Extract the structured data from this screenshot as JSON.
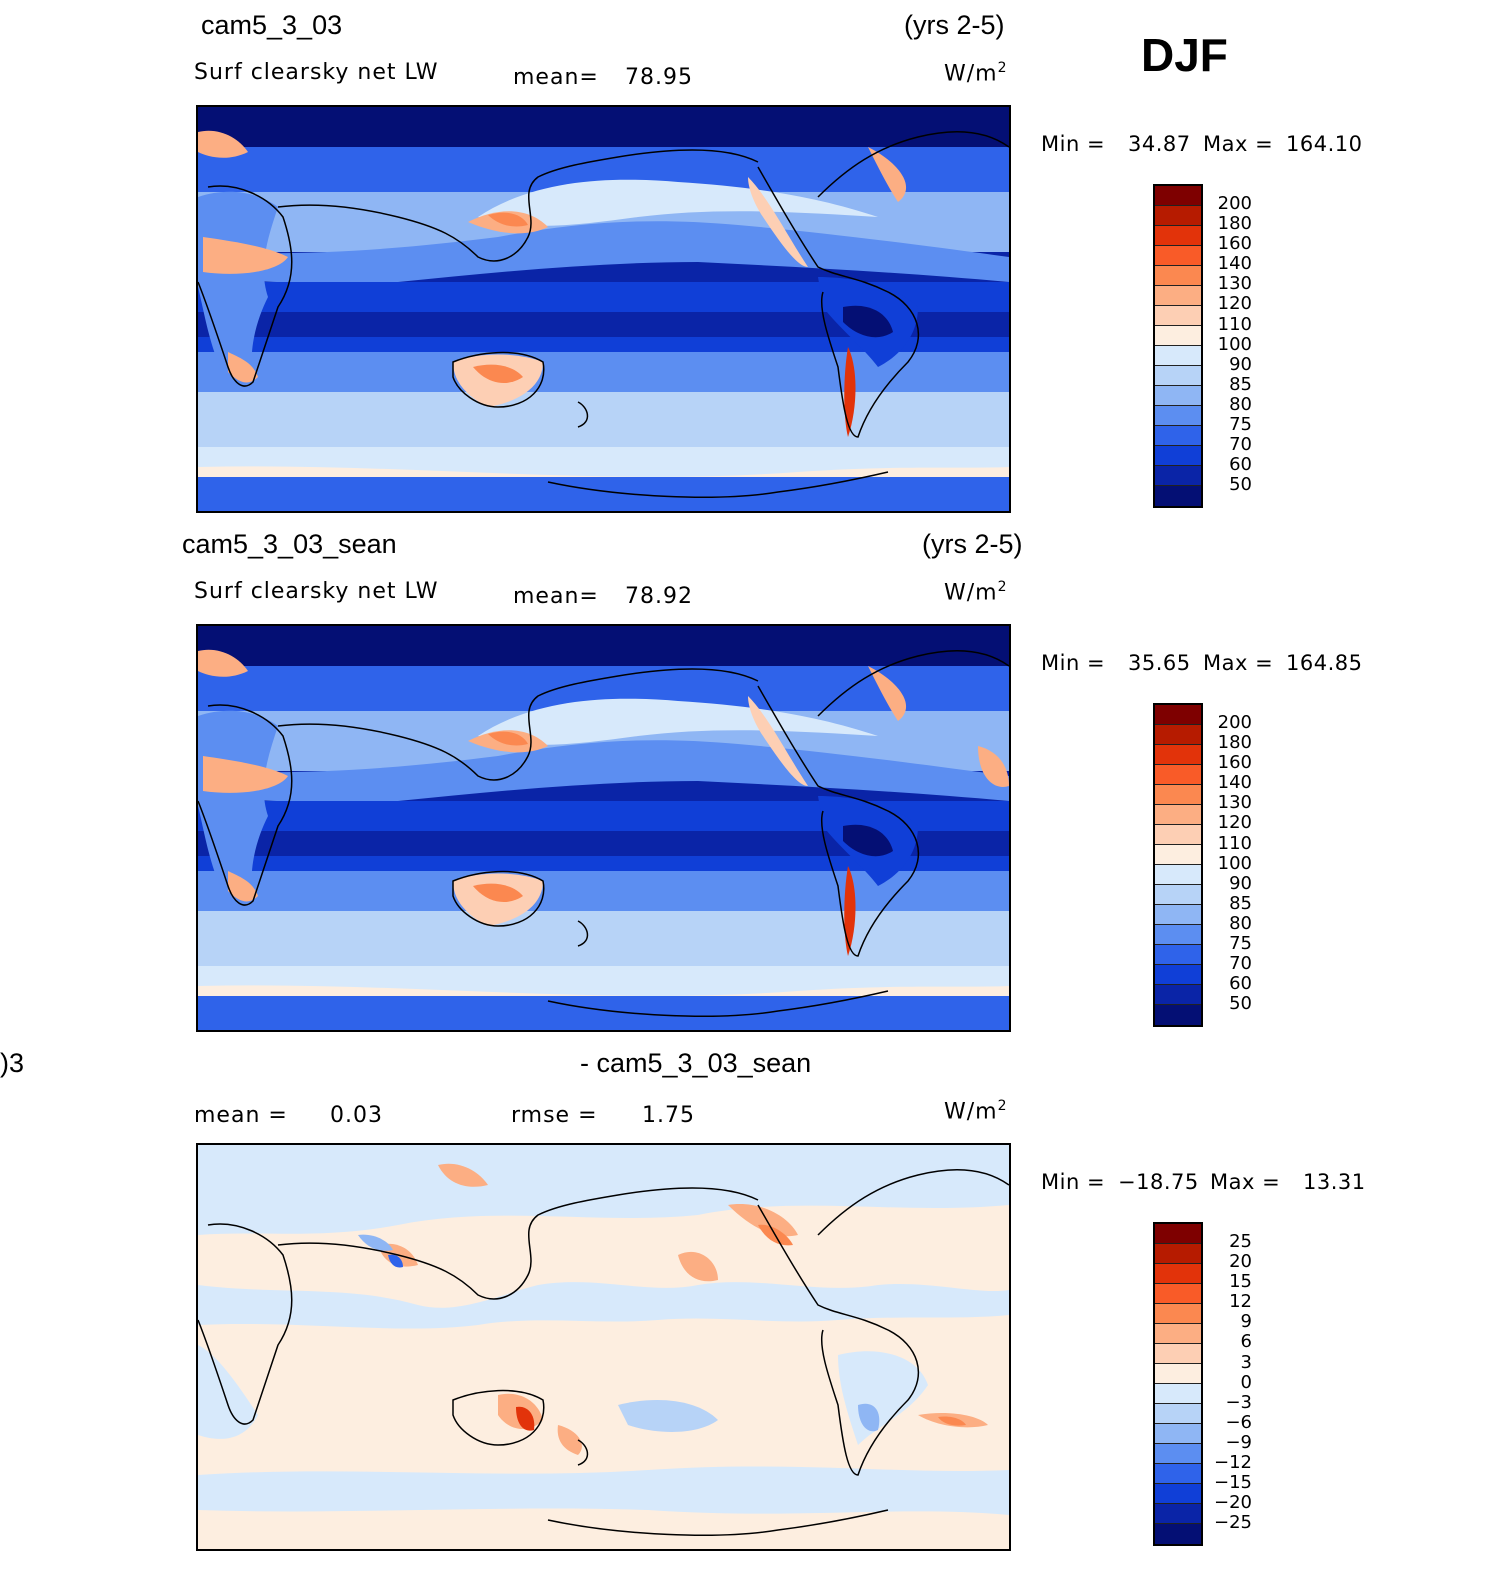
{
  "season": "DJF",
  "panels": [
    {
      "case": "cam5_3_03",
      "years": "(yrs 2-5)",
      "variable": "Surf clearsky net LW",
      "stat1_label": "mean=",
      "stat1_value": "78.95",
      "units_base": "W/m",
      "units_exp": "2",
      "min_label": "Min =",
      "min_value": "34.87",
      "max_label": "Max =",
      "max_value": "164.10",
      "colorbar_labels": [
        "200",
        "180",
        "160",
        "140",
        "130",
        "120",
        "110",
        "100",
        "90",
        "85",
        "80",
        "75",
        "70",
        "60",
        "50"
      ],
      "colorbar_colors": [
        "#7e0000",
        "#b61b00",
        "#e2330a",
        "#f95b28",
        "#fb8850",
        "#fcae83",
        "#fdcfb4",
        "#fdeee0",
        "#d7e9fb",
        "#b7d3f7",
        "#8fb6f4",
        "#5c8ef1",
        "#2f63ea",
        "#103fd7",
        "#0a24a7",
        "#040f74"
      ]
    },
    {
      "case": "cam5_3_03_sean",
      "years": "(yrs 2-5)",
      "variable": "Surf clearsky net LW",
      "stat1_label": "mean=",
      "stat1_value": "78.92",
      "units_base": "W/m",
      "units_exp": "2",
      "min_label": "Min =",
      "min_value": "35.65",
      "max_label": "Max =",
      "max_value": "164.85",
      "colorbar_labels": [
        "200",
        "180",
        "160",
        "140",
        "130",
        "120",
        "110",
        "100",
        "90",
        "85",
        "80",
        "75",
        "70",
        "60",
        "50"
      ],
      "colorbar_colors": [
        "#7e0000",
        "#b61b00",
        "#e2330a",
        "#f95b28",
        "#fb8850",
        "#fcae83",
        "#fdcfb4",
        "#fdeee0",
        "#d7e9fb",
        "#b7d3f7",
        "#8fb6f4",
        "#5c8ef1",
        "#2f63ea",
        "#103fd7",
        "#0a24a7",
        "#040f74"
      ]
    },
    {
      "case_left": ")3",
      "case": "- cam5_3_03_sean",
      "stat1_label": "mean =",
      "stat1_value": "0.03",
      "stat2_label": "rmse =",
      "stat2_value": "1.75",
      "units_base": "W/m",
      "units_exp": "2",
      "min_label": "Min =",
      "min_value": "−18.75",
      "max_label": "Max =",
      "max_value": "13.31",
      "colorbar_labels": [
        "25",
        "20",
        "15",
        "12",
        "9",
        "6",
        "3",
        "0",
        "−3",
        "−6",
        "−9",
        "−12",
        "−15",
        "−20",
        "−25"
      ],
      "colorbar_colors": [
        "#7e0000",
        "#b61b00",
        "#e2330a",
        "#f95b28",
        "#fb8850",
        "#fcae83",
        "#fdcfb4",
        "#fdeee0",
        "#d7e9fb",
        "#b7d3f7",
        "#8fb6f4",
        "#5c8ef1",
        "#2f63ea",
        "#103fd7",
        "#0a24a7",
        "#040f74"
      ]
    }
  ]
}
